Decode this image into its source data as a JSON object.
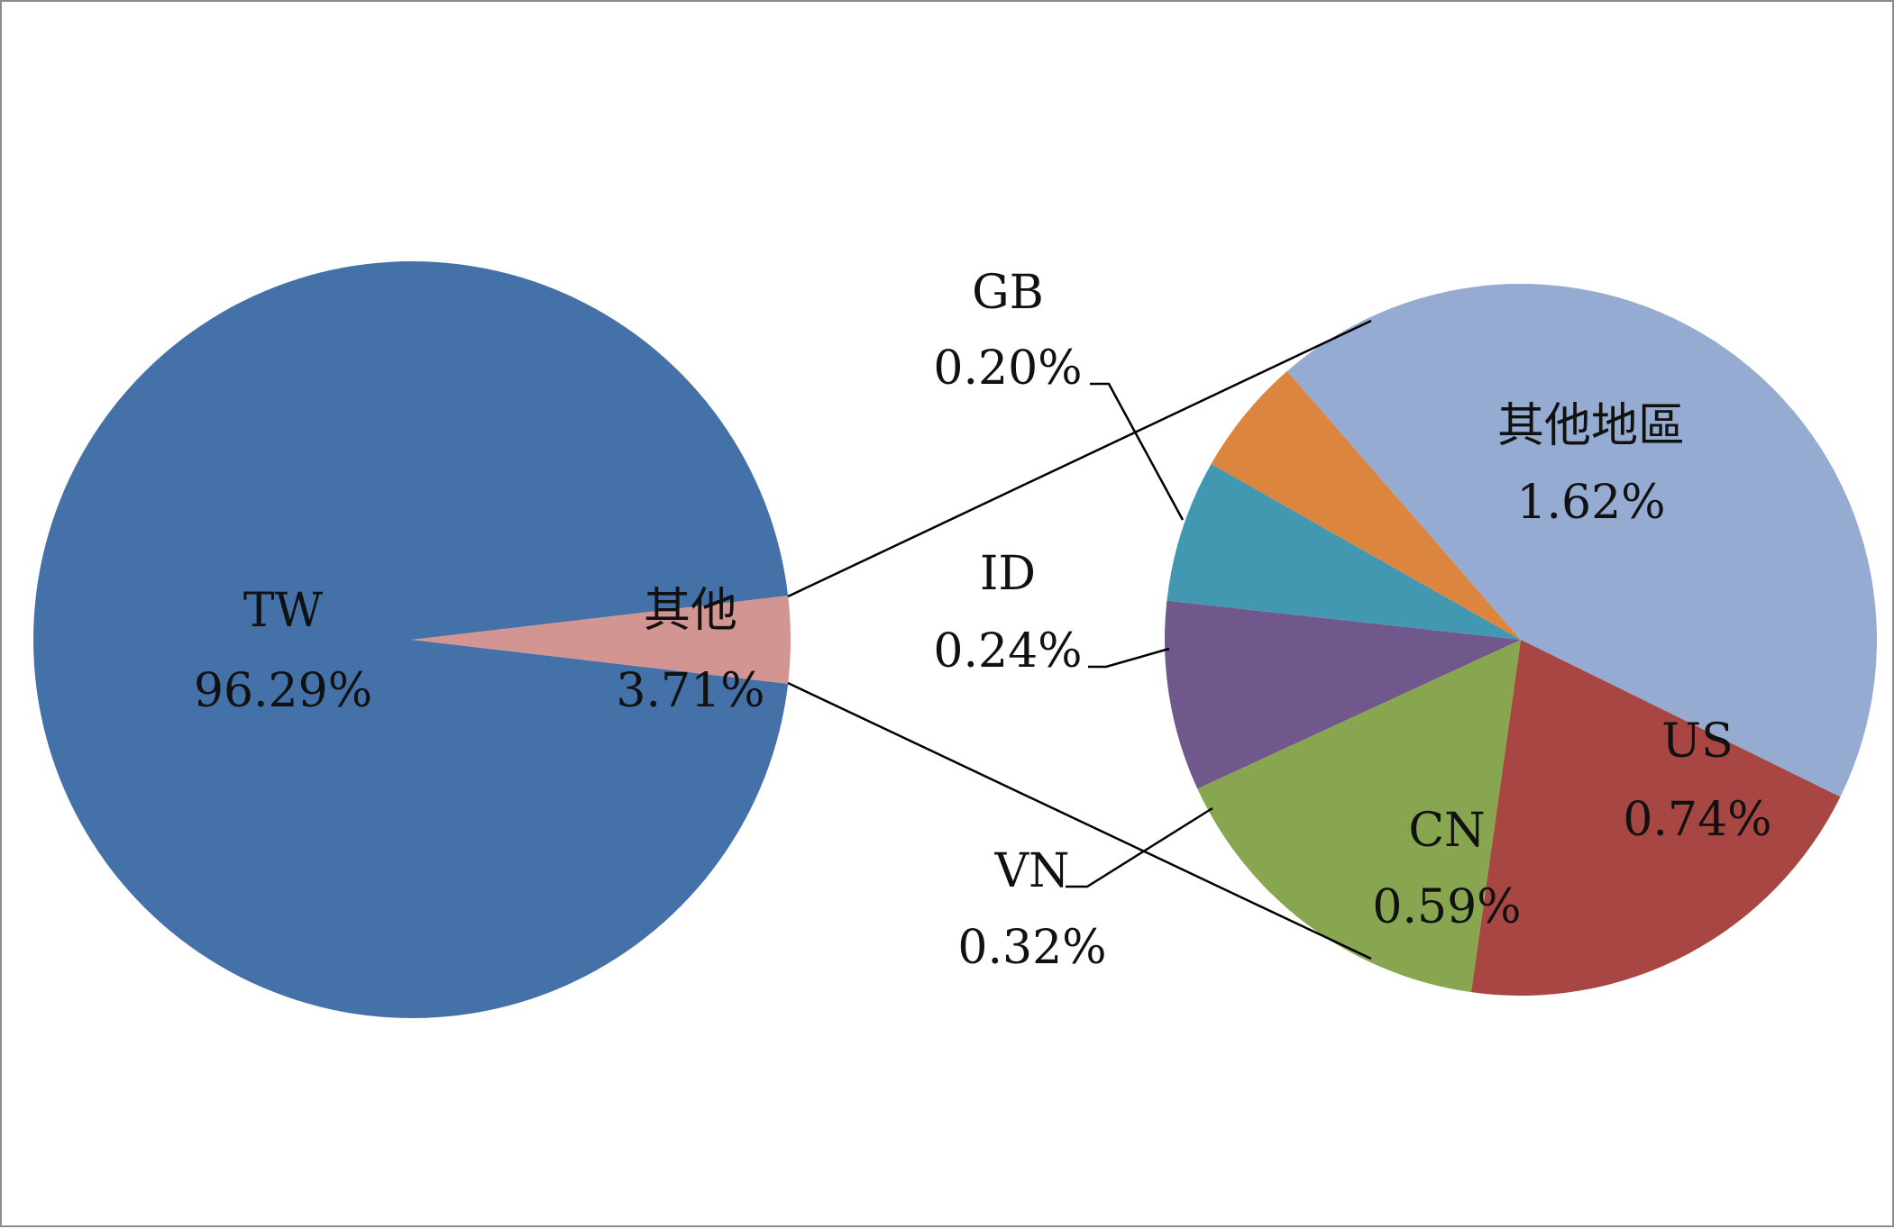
{
  "chart_data": {
    "type": "pie",
    "subtype": "pie-of-pie",
    "primary": {
      "slices": [
        {
          "label": "TW",
          "value": 96.29,
          "value_label": "96.29%",
          "color": "#4472a8"
        },
        {
          "label": "其他",
          "value": 3.71,
          "value_label": "3.71%",
          "color": "#d39592"
        }
      ]
    },
    "secondary": {
      "slices": [
        {
          "label": "其他地區",
          "value": 1.62,
          "value_label": "1.62%",
          "color": "#95abd1"
        },
        {
          "label": "US",
          "value": 0.74,
          "value_label": "0.74%",
          "color": "#a84644"
        },
        {
          "label": "CN",
          "value": 0.59,
          "value_label": "0.59%",
          "color": "#88a54f"
        },
        {
          "label": "VN",
          "value": 0.32,
          "value_label": "0.32%",
          "color": "#70588c"
        },
        {
          "label": "ID",
          "value": 0.24,
          "value_label": "0.24%",
          "color": "#4298b0"
        },
        {
          "label": "GB",
          "value": 0.2,
          "value_label": "0.20%",
          "color": "#dc853f"
        }
      ]
    },
    "connector_color": "#000000",
    "legend": "none"
  }
}
